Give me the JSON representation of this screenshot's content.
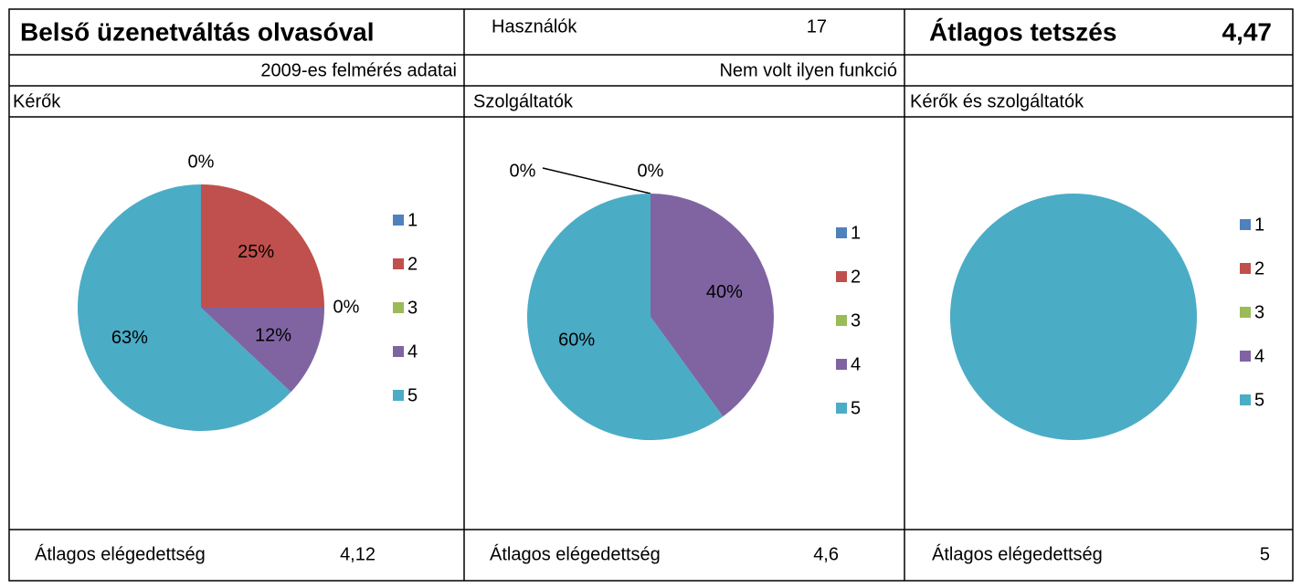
{
  "header": {
    "title": "Belső üzenetváltás olvasóval",
    "users_label": "Használók",
    "users_value": "17",
    "rating_label": "Átlagos tetszés",
    "rating_value": "4,47"
  },
  "notes": [
    "2009-es felmérés adatai",
    "Nem volt ilyen funkció"
  ],
  "chart_data": [
    {
      "type": "pie",
      "title": "Kérők",
      "categories": [
        "1",
        "2",
        "3",
        "4",
        "5"
      ],
      "values": [
        0,
        25,
        0,
        12,
        63
      ],
      "value_labels": [
        "0%",
        "25%",
        "0%",
        "12%",
        "63%"
      ],
      "colors": [
        "#4f81bd",
        "#c0504d",
        "#9bbb59",
        "#8064a2",
        "#4bacc6"
      ],
      "legend": "right",
      "footer_label": "Átlagos elégedettség",
      "footer_value": "4,12"
    },
    {
      "type": "pie",
      "title": "Szolgáltatók",
      "categories": [
        "1",
        "2",
        "3",
        "4",
        "5"
      ],
      "values": [
        0,
        0,
        0,
        40,
        60
      ],
      "value_labels": [
        "0%",
        "0%",
        null,
        "40%",
        "60%"
      ],
      "colors": [
        "#4f81bd",
        "#c0504d",
        "#9bbb59",
        "#8064a2",
        "#4bacc6"
      ],
      "legend": "right",
      "footer_label": "Átlagos elégedettség",
      "footer_value": "4,6"
    },
    {
      "type": "pie",
      "title": "Kérők és szolgáltatók",
      "categories": [
        "1",
        "2",
        "3",
        "4",
        "5"
      ],
      "values": [
        0,
        0,
        0,
        0,
        100
      ],
      "colors": [
        "#4f81bd",
        "#c0504d",
        "#9bbb59",
        "#8064a2",
        "#4bacc6"
      ],
      "legend": "right",
      "footer_label": "Átlagos elégedettség",
      "footer_value": "5"
    }
  ]
}
